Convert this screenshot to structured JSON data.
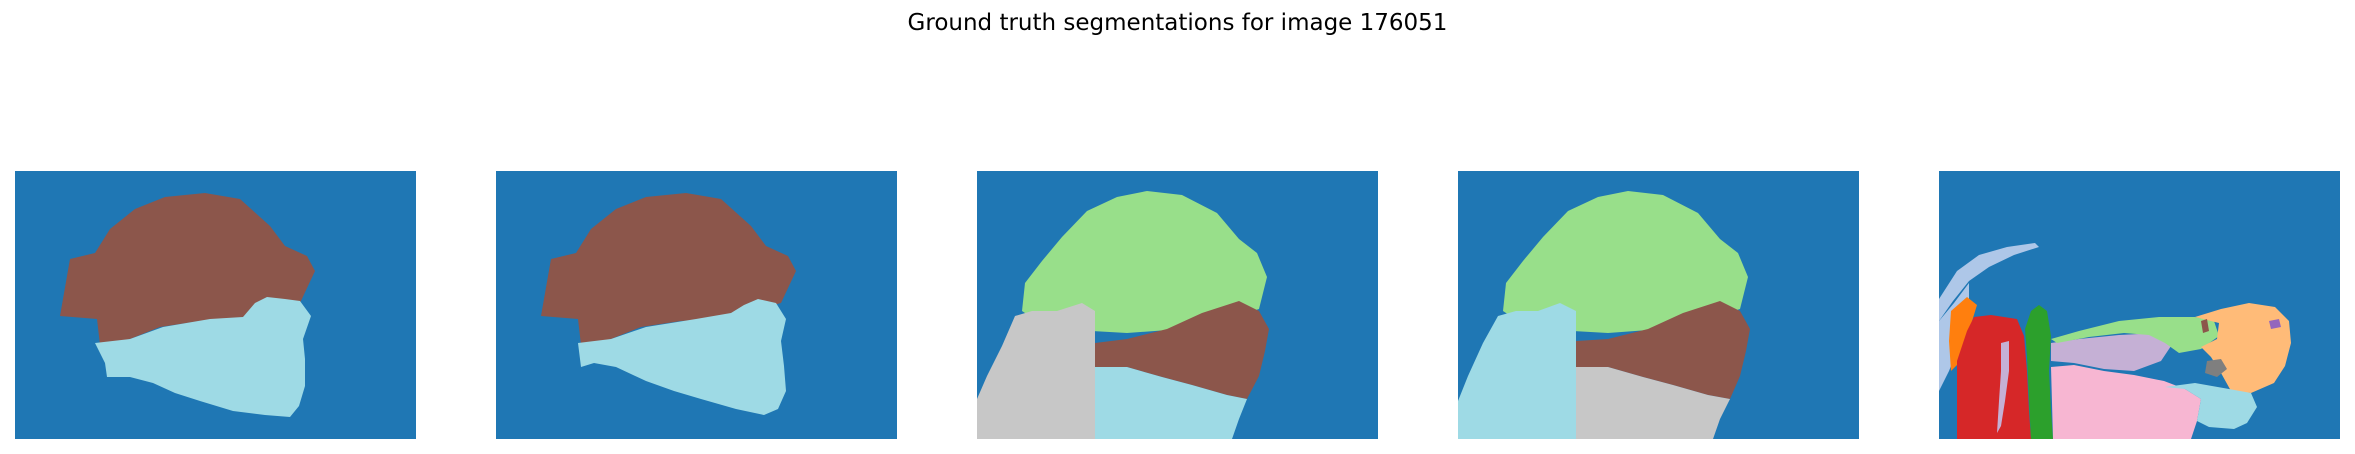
{
  "figure": {
    "title": "Ground truth segmentations for image 176051"
  },
  "panels": [
    {
      "name": "segmentation-1",
      "region_colors": [
        "#1f77b4",
        "#8c564b",
        "#9edae5"
      ]
    },
    {
      "name": "segmentation-2",
      "region_colors": [
        "#1f77b4",
        "#8c564b",
        "#9edae5"
      ]
    },
    {
      "name": "segmentation-3",
      "region_colors": [
        "#1f77b4",
        "#98df8a",
        "#8c564b",
        "#c7c7c7",
        "#9edae5"
      ]
    },
    {
      "name": "segmentation-4",
      "region_colors": [
        "#1f77b4",
        "#98df8a",
        "#8c564b",
        "#c7c7c7",
        "#9edae5"
      ]
    },
    {
      "name": "segmentation-5",
      "region_colors": [
        "#1f77b4",
        "#aec7e8",
        "#ff7f0e",
        "#d62728",
        "#2ca02c",
        "#c5b0d5",
        "#ffbb78",
        "#f7b6d2",
        "#9edae5",
        "#98df8a",
        "#7f7f7f",
        "#8c564b",
        "#9467bd"
      ]
    }
  ]
}
